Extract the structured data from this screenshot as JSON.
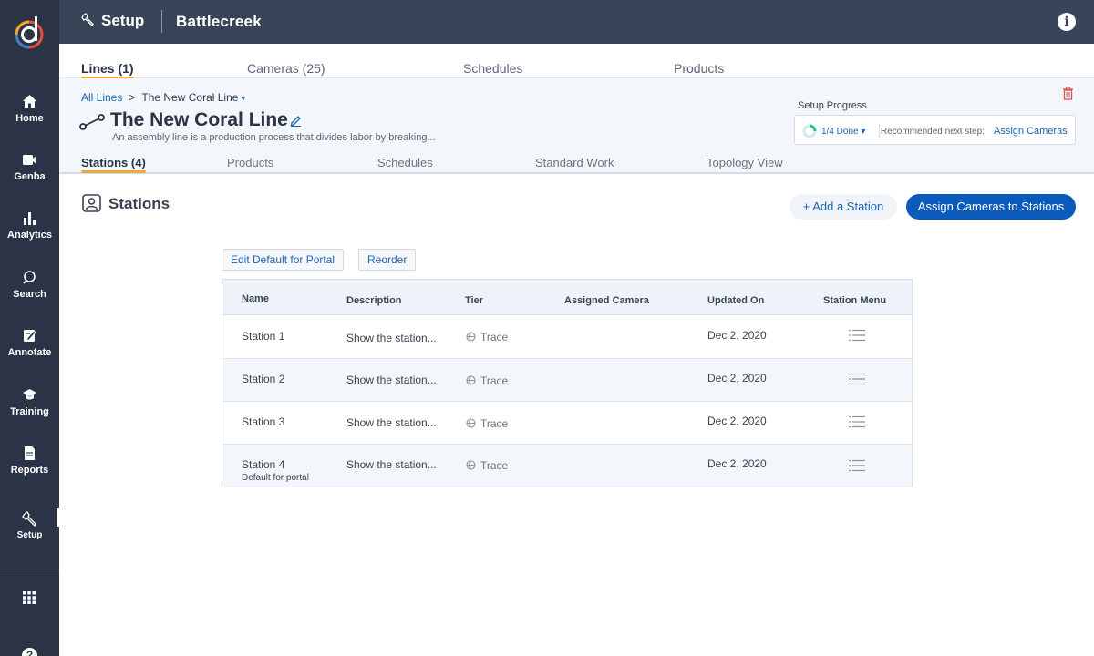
{
  "nav": {
    "items": [
      {
        "label": "Home",
        "icon": "home-icon"
      },
      {
        "label": "Genba",
        "icon": "video-camera-icon"
      },
      {
        "label": "Analytics",
        "icon": "bar-chart-icon"
      },
      {
        "label": "Search",
        "icon": "search-icon"
      },
      {
        "label": "Annotate",
        "icon": "annotate-icon"
      },
      {
        "label": "Training",
        "icon": "graduation-cap-icon"
      },
      {
        "label": "Reports",
        "icon": "document-icon"
      },
      {
        "label": "Setup",
        "icon": "wrench-icon"
      }
    ],
    "active": "Setup"
  },
  "header": {
    "section": "Setup",
    "site": "Battlecreek",
    "info_glyph": "i"
  },
  "main_tabs": [
    {
      "label": "Lines (1)",
      "active": true
    },
    {
      "label": "Cameras (25)",
      "active": false
    },
    {
      "label": "Schedules",
      "active": false
    },
    {
      "label": "Products",
      "active": false
    }
  ],
  "breadcrumb": {
    "root": "All Lines",
    "separator": ">",
    "current": "The New Coral Line",
    "caret": "▾"
  },
  "line": {
    "title": "The New Coral Line",
    "description": "An assembly line is a production process that divides labor by breaking..."
  },
  "setup_progress": {
    "label": "Setup Progress",
    "done": "1/4 Done ▾",
    "fraction": 0.25,
    "recommended_label": "Recommended next step:",
    "recommended_link": "Assign Cameras"
  },
  "sub_tabs": [
    {
      "label": "Stations (4)",
      "active": true
    },
    {
      "label": "Products",
      "active": false
    },
    {
      "label": "Schedules",
      "active": false
    },
    {
      "label": "Standard Work",
      "active": false
    },
    {
      "label": "Topology View",
      "active": false
    }
  ],
  "stations_panel": {
    "title": "Stations",
    "add_button": "+ Add a Station",
    "assign_button": "Assign Cameras to Stations",
    "edit_default_button": "Edit Default for Portal",
    "reorder_button": "Reorder"
  },
  "table": {
    "columns": [
      "Name",
      "Description",
      "Tier",
      "Assigned Camera",
      "Updated On",
      "Station Menu"
    ],
    "rows": [
      {
        "name": "Station 1",
        "sub": "",
        "description": "Show the station...",
        "tier": "Trace",
        "camera": "",
        "updated": "Dec 2, 2020"
      },
      {
        "name": "Station 2",
        "sub": "",
        "description": "Show the station...",
        "tier": "Trace",
        "camera": "",
        "updated": "Dec 2, 2020"
      },
      {
        "name": "Station 3",
        "sub": "",
        "description": "Show the station...",
        "tier": "Trace",
        "camera": "",
        "updated": "Dec 2, 2020"
      },
      {
        "name": "Station 4",
        "sub": "Default for portal",
        "description": "Show the station...",
        "tier": "Trace",
        "camera": "",
        "updated": "Dec 2, 2020"
      }
    ]
  },
  "colors": {
    "sidebar": "#2b3446",
    "header": "#3a4459",
    "accent_tab": "#f0a73b",
    "link": "#1b64b5",
    "primary_button": "#0b5bbd",
    "delete": "#d9534f"
  }
}
